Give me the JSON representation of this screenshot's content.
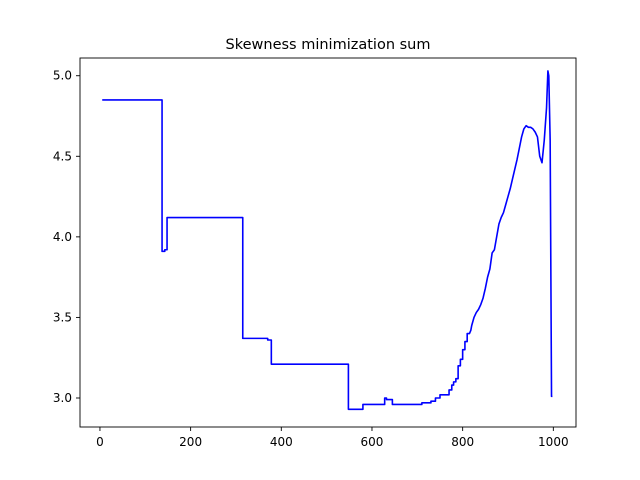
{
  "chart_data": {
    "type": "line",
    "title": "Skewness minimization sum",
    "xlabel": "",
    "ylabel": "",
    "xlim": [
      -44,
      1050
    ],
    "ylim": [
      2.82,
      5.11
    ],
    "grid": false,
    "x_ticks": [
      0,
      200,
      400,
      600,
      800,
      1000
    ],
    "x_tick_labels": [
      "0",
      "200",
      "400",
      "600",
      "800",
      "1000"
    ],
    "y_ticks": [
      3.0,
      3.5,
      4.0,
      4.5,
      5.0
    ],
    "y_tick_labels": [
      "3.0",
      "3.5",
      "4.0",
      "4.5",
      "5.0"
    ],
    "series": [
      {
        "color": "#0000ff",
        "x": [
          5,
          137,
          137,
          143,
          143,
          148,
          148,
          315,
          315,
          370,
          370,
          378,
          378,
          450,
          548,
          548,
          580,
          580,
          628,
          628,
          632,
          632,
          645,
          645,
          650,
          650,
          710,
          710,
          720,
          720,
          730,
          730,
          740,
          740,
          750,
          750,
          770,
          770,
          776,
          776,
          780,
          780,
          785,
          785,
          790,
          790,
          795,
          795,
          800,
          800,
          805,
          805,
          810,
          810,
          815,
          818,
          820,
          825,
          830,
          835,
          840,
          845,
          850,
          855,
          860,
          865,
          870,
          875,
          880,
          885,
          890,
          895,
          900,
          905,
          910,
          915,
          920,
          925,
          930,
          935,
          940,
          945,
          950,
          955,
          960,
          965,
          970,
          975,
          980,
          985,
          988,
          990,
          993,
          996,
          997,
          998
        ],
        "y": [
          4.85,
          4.85,
          3.91,
          3.91,
          3.92,
          3.92,
          4.12,
          4.12,
          3.37,
          3.37,
          3.36,
          3.36,
          3.21,
          3.21,
          3.21,
          2.93,
          2.93,
          2.96,
          2.96,
          3.0,
          3.0,
          2.99,
          2.99,
          2.96,
          2.96,
          2.96,
          2.96,
          2.97,
          2.97,
          2.97,
          2.97,
          2.98,
          2.98,
          3.0,
          3.0,
          3.02,
          3.02,
          3.05,
          3.05,
          3.08,
          3.08,
          3.1,
          3.1,
          3.12,
          3.12,
          3.2,
          3.2,
          3.24,
          3.24,
          3.3,
          3.3,
          3.35,
          3.35,
          3.4,
          3.4,
          3.42,
          3.45,
          3.5,
          3.53,
          3.55,
          3.58,
          3.62,
          3.68,
          3.75,
          3.8,
          3.9,
          3.92,
          4.0,
          4.08,
          4.12,
          4.15,
          4.2,
          4.25,
          4.3,
          4.36,
          4.42,
          4.48,
          4.55,
          4.62,
          4.67,
          4.69,
          4.68,
          4.68,
          4.67,
          4.65,
          4.62,
          4.5,
          4.46,
          4.6,
          4.8,
          5.03,
          5.0,
          4.6,
          3.01,
          3.01,
          3.01
        ]
      }
    ]
  }
}
